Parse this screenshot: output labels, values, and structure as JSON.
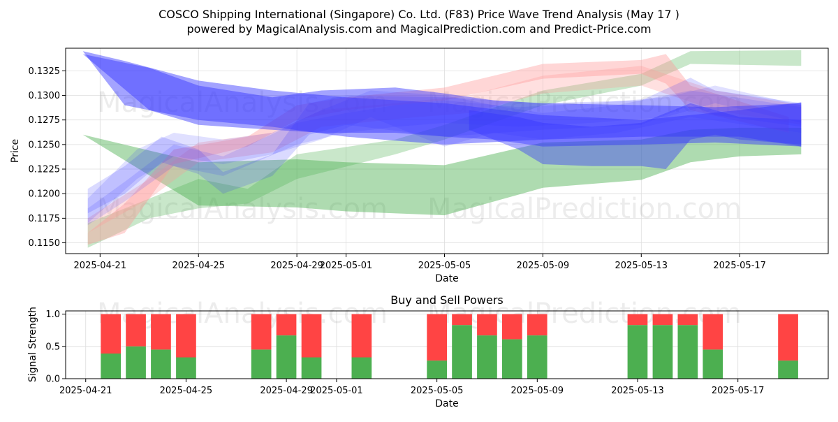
{
  "colors": {
    "green": "#4caf50",
    "red": "#ff4444",
    "blue": "#3232ff",
    "pink": "#ff9999",
    "grid": "#dddddd"
  },
  "chart_data": [
    {
      "type": "area",
      "title_line1": "COSCO Shipping International (Singapore) Co. Ltd. (F83) Price Wave Trend Analysis (May 17 )",
      "title_line2": "powered by MagicalAnalysis.com and MagicalPrediction.com and Predict-Price.com",
      "xlabel": "Date",
      "ylabel": "Price",
      "ylim": [
        0.1139,
        0.1348
      ],
      "yticks": [
        "0.1150",
        "0.1175",
        "0.1200",
        "0.1225",
        "0.1250",
        "0.1275",
        "0.1300",
        "0.1325"
      ],
      "xticks": [
        "2025-04-21",
        "2025-04-25",
        "2025-04-29",
        "2025-05-01",
        "2025-05-05",
        "2025-05-09",
        "2025-05-13",
        "2025-05-17"
      ],
      "xtick_days": [
        0,
        4,
        8,
        10,
        14,
        18,
        22,
        26
      ],
      "xlim_days": [
        -1.4,
        29.6
      ],
      "watermarks": [
        "MagicalAnalysis.com",
        "MagicalPrediction.com",
        "MagicalAnalysis.com",
        "MagicalPrediction.com"
      ],
      "bands": [
        {
          "name": "green-1",
          "color": "green",
          "opacity": 0.45,
          "x": [
            -1.2,
            -0.7,
            4,
            8,
            10,
            14,
            18,
            22,
            24,
            26,
            28.5
          ],
          "upper": [
            0.1212,
            0.126,
            0.1232,
            0.1235,
            0.1232,
            0.1229,
            0.1252,
            0.1255,
            0.1265,
            0.1267,
            0.1267
          ],
          "lower": [
            0.1212,
            0.126,
            0.1188,
            0.1186,
            0.1182,
            0.1178,
            0.1206,
            0.1214,
            0.1232,
            0.1238,
            0.124
          ]
        },
        {
          "name": "green-2",
          "color": "green",
          "opacity": 0.3,
          "x": [
            -0.5,
            2,
            4,
            6,
            8,
            12,
            14,
            18,
            22,
            24,
            28.5
          ],
          "upper": [
            0.117,
            0.1195,
            0.1215,
            0.1205,
            0.124,
            0.1255,
            0.127,
            0.1305,
            0.1322,
            0.1345,
            0.1346
          ],
          "lower": [
            0.1145,
            0.1175,
            0.1185,
            0.119,
            0.1215,
            0.124,
            0.1255,
            0.129,
            0.131,
            0.1332,
            0.133
          ]
        },
        {
          "name": "pink-1",
          "color": "pink",
          "opacity": 0.4,
          "x": [
            -0.5,
            1,
            3,
            6,
            8,
            10,
            14,
            18,
            22,
            23,
            24,
            28
          ],
          "upper": [
            0.116,
            0.119,
            0.1245,
            0.1258,
            0.129,
            0.1298,
            0.1308,
            0.1332,
            0.1336,
            0.1342,
            0.131,
            0.1278
          ],
          "lower": [
            0.1148,
            0.116,
            0.123,
            0.1248,
            0.1275,
            0.1285,
            0.1295,
            0.1317,
            0.1322,
            0.1312,
            0.1285,
            0.1262
          ]
        },
        {
          "name": "pink-2",
          "color": "pink",
          "opacity": 0.3,
          "x": [
            -0.5,
            2,
            4,
            7,
            9,
            12,
            15,
            18,
            22,
            25,
            28.5
          ],
          "upper": [
            0.1175,
            0.1215,
            0.1252,
            0.1262,
            0.1285,
            0.1292,
            0.13,
            0.132,
            0.133,
            0.1305,
            0.129
          ],
          "lower": [
            0.116,
            0.1195,
            0.1232,
            0.1242,
            0.1268,
            0.1276,
            0.1282,
            0.1302,
            0.131,
            0.1285,
            0.127
          ]
        },
        {
          "name": "blue-light-1",
          "color": "blue",
          "opacity": 0.18,
          "x": [
            -0.5,
            1,
            2.5,
            4,
            5,
            7,
            8.5,
            10,
            14,
            18,
            22,
            24,
            25,
            28.5
          ],
          "upper": [
            0.1205,
            0.1228,
            0.1258,
            0.1245,
            0.1222,
            0.124,
            0.1292,
            0.13,
            0.1298,
            0.1292,
            0.1295,
            0.1318,
            0.1305,
            0.1292
          ],
          "lower": [
            0.118,
            0.12,
            0.1232,
            0.122,
            0.12,
            0.1218,
            0.126,
            0.127,
            0.1258,
            0.1265,
            0.127,
            0.129,
            0.128,
            0.1268
          ]
        },
        {
          "name": "blue-light-2",
          "color": "blue",
          "opacity": 0.15,
          "x": [
            -0.5,
            1.5,
            3,
            5,
            7,
            9,
            11,
            14,
            16,
            18,
            21,
            24,
            28.5
          ],
          "upper": [
            0.1195,
            0.1245,
            0.1262,
            0.1255,
            0.1262,
            0.1285,
            0.1305,
            0.13,
            0.129,
            0.1282,
            0.129,
            0.1305,
            0.1288
          ],
          "lower": [
            0.117,
            0.1215,
            0.1238,
            0.123,
            0.124,
            0.1255,
            0.1278,
            0.1248,
            0.1262,
            0.1255,
            0.1262,
            0.1278,
            0.1262
          ]
        },
        {
          "name": "blue-light-3",
          "color": "blue",
          "opacity": 0.15,
          "x": [
            -0.5,
            1,
            3,
            5,
            8,
            10,
            12,
            14,
            17,
            20,
            23,
            25,
            28.5
          ],
          "upper": [
            0.1185,
            0.1212,
            0.125,
            0.1238,
            0.1272,
            0.1282,
            0.129,
            0.1295,
            0.1288,
            0.1292,
            0.1298,
            0.131,
            0.129
          ],
          "lower": [
            0.1168,
            0.1192,
            0.1228,
            0.1218,
            0.125,
            0.1262,
            0.1268,
            0.1272,
            0.1268,
            0.1272,
            0.1278,
            0.1292,
            0.1272
          ]
        },
        {
          "name": "blue-main-1",
          "color": "blue",
          "opacity": 0.45,
          "x": [
            -1.2,
            -0.7,
            1,
            4,
            7,
            10,
            14,
            18,
            22,
            26,
            28.5
          ],
          "upper": [
            0.13,
            0.1345,
            0.1335,
            0.1315,
            0.1305,
            0.1298,
            0.1292,
            0.128,
            0.1275,
            0.1285,
            0.1293
          ],
          "lower": [
            0.13,
            0.1345,
            0.129,
            0.1275,
            0.1268,
            0.1258,
            0.125,
            0.1255,
            0.1258,
            0.1258,
            0.1248
          ]
        },
        {
          "name": "blue-main-2",
          "color": "blue",
          "opacity": 0.45,
          "x": [
            -1.2,
            -0.7,
            2,
            4,
            7,
            9,
            12,
            14,
            16,
            18,
            22,
            25,
            28.5
          ],
          "upper": [
            0.1298,
            0.1342,
            0.1328,
            0.131,
            0.1298,
            0.1305,
            0.1308,
            0.1302,
            0.1295,
            0.1292,
            0.129,
            0.1288,
            0.1292
          ],
          "lower": [
            0.1298,
            0.1342,
            0.1285,
            0.127,
            0.1265,
            0.1262,
            0.1262,
            0.1258,
            0.1255,
            0.1248,
            0.125,
            0.1252,
            0.1248
          ]
        },
        {
          "name": "blue-dark",
          "color": "blue",
          "opacity": 0.4,
          "x": [
            15,
            17,
            18,
            20,
            22,
            23,
            24,
            25,
            26,
            28.5
          ],
          "upper": [
            0.1285,
            0.1278,
            0.1272,
            0.1268,
            0.1272,
            0.1282,
            0.1292,
            0.1285,
            0.1278,
            0.1275
          ],
          "lower": [
            0.1265,
            0.1245,
            0.123,
            0.1228,
            0.1228,
            0.1225,
            0.1255,
            0.126,
            0.1255,
            0.125
          ]
        }
      ]
    },
    {
      "type": "bar",
      "title": "Buy and Sell Powers",
      "xlabel": "Date",
      "ylabel": "Signal Strength",
      "ylim": [
        0,
        1.05
      ],
      "yticks": [
        "0.0",
        "0.5",
        "1.0"
      ],
      "xticks": [
        "2025-04-21",
        "2025-04-25",
        "2025-04-29",
        "2025-05-01",
        "2025-05-05",
        "2025-05-09",
        "2025-05-13",
        "2025-05-17"
      ],
      "xtick_days": [
        0,
        4,
        8,
        10,
        14,
        18,
        22,
        26
      ],
      "xlim_days": [
        -0.8,
        29.6
      ],
      "series": [
        {
          "name": "Buy",
          "color": "green"
        },
        {
          "name": "Sell",
          "color": "red"
        }
      ],
      "days": [
        1,
        2,
        3,
        4,
        7,
        8,
        9,
        11,
        14,
        15,
        16,
        17,
        18,
        22,
        23,
        24,
        25,
        28
      ],
      "buy_values": [
        0.39,
        0.5,
        0.45,
        0.33,
        0.45,
        0.67,
        0.33,
        0.33,
        0.28,
        0.83,
        0.67,
        0.61,
        0.67,
        0.83,
        0.83,
        0.83,
        0.45,
        0.28
      ]
    }
  ]
}
